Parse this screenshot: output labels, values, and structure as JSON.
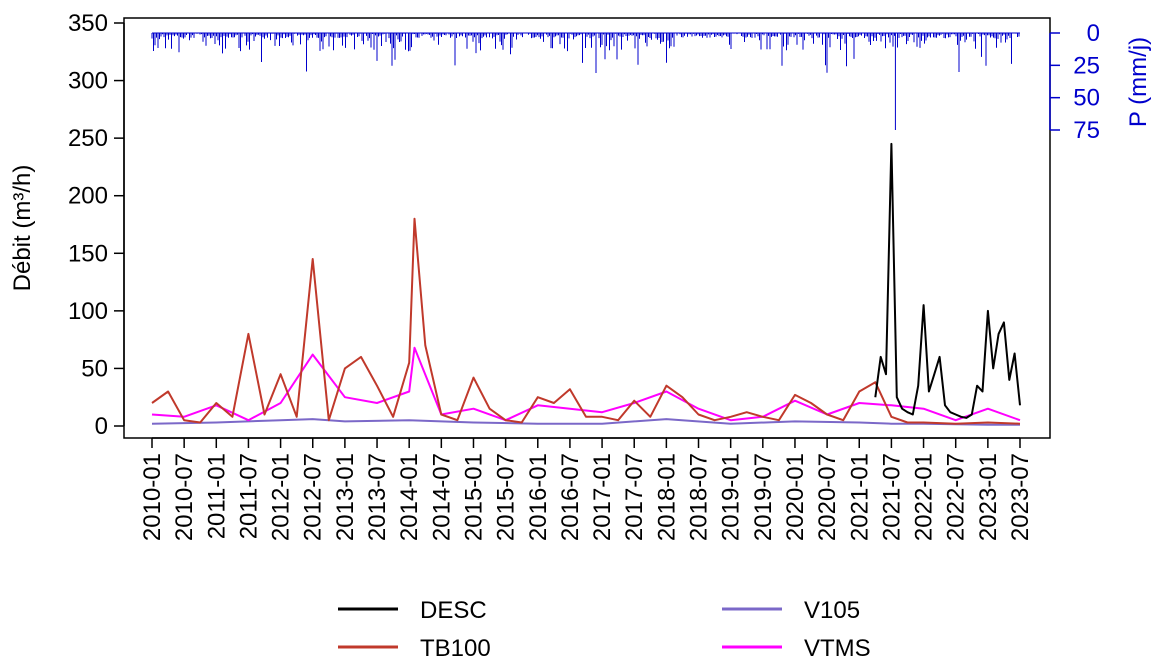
{
  "chart_data": {
    "type": "line",
    "ylabel": "Débit (m³/h)",
    "y2label": "P (mm/j)",
    "ylim": [
      0,
      350
    ],
    "yticks": [
      0,
      50,
      100,
      150,
      200,
      250,
      300,
      350
    ],
    "y2lim_inverted": [
      0,
      75
    ],
    "y2ticks": [
      0,
      25,
      50,
      75
    ],
    "xlim": [
      "2010-01",
      "2023-07"
    ],
    "xticks": [
      "2010-01",
      "2010-07",
      "2011-01",
      "2011-07",
      "2012-01",
      "2012-07",
      "2013-01",
      "2013-07",
      "2014-01",
      "2014-07",
      "2015-01",
      "2015-07",
      "2016-01",
      "2016-07",
      "2017-01",
      "2017-07",
      "2018-01",
      "2018-07",
      "2019-01",
      "2019-07",
      "2020-01",
      "2020-07",
      "2021-01",
      "2021-07",
      "2022-01",
      "2022-07",
      "2023-01",
      "2023-07"
    ],
    "grid": false,
    "legend_position": "bottom",
    "colors": {
      "DESC": "#000000",
      "TB100": "#c0392b",
      "V105": "#7b68c8",
      "VTMS": "#ff00ff",
      "precip": "#0000cc"
    },
    "series": [
      {
        "name": "DESC",
        "x": [
          "2021-04",
          "2021-05",
          "2021-06",
          "2021-07",
          "2021-08",
          "2021-09",
          "2021-10",
          "2021-11",
          "2021-12",
          "2022-01",
          "2022-02",
          "2022-03",
          "2022-04",
          "2022-05",
          "2022-06",
          "2022-07",
          "2022-08",
          "2022-09",
          "2022-10",
          "2022-11",
          "2022-12",
          "2023-01",
          "2023-02",
          "2023-03",
          "2023-04",
          "2023-05",
          "2023-06",
          "2023-07"
        ],
        "y": [
          25,
          60,
          45,
          245,
          25,
          15,
          12,
          10,
          35,
          105,
          30,
          45,
          60,
          18,
          12,
          10,
          8,
          7,
          10,
          35,
          30,
          100,
          50,
          80,
          90,
          40,
          63,
          18
        ]
      },
      {
        "name": "TB100",
        "x": [
          "2010-01",
          "2010-04",
          "2010-07",
          "2010-10",
          "2011-01",
          "2011-04",
          "2011-07",
          "2011-10",
          "2012-01",
          "2012-04",
          "2012-07",
          "2012-10",
          "2013-01",
          "2013-04",
          "2013-07",
          "2013-10",
          "2014-01",
          "2014-02",
          "2014-04",
          "2014-07",
          "2014-10",
          "2015-01",
          "2015-04",
          "2015-07",
          "2015-10",
          "2016-01",
          "2016-04",
          "2016-07",
          "2016-10",
          "2017-01",
          "2017-04",
          "2017-07",
          "2017-10",
          "2018-01",
          "2018-04",
          "2018-07",
          "2018-10",
          "2019-01",
          "2019-04",
          "2019-07",
          "2019-10",
          "2020-01",
          "2020-04",
          "2020-07",
          "2020-10",
          "2021-01",
          "2021-04",
          "2021-07",
          "2021-10",
          "2022-01",
          "2022-07",
          "2023-01",
          "2023-07"
        ],
        "y": [
          20,
          30,
          5,
          3,
          20,
          8,
          80,
          10,
          45,
          8,
          145,
          5,
          50,
          60,
          35,
          8,
          55,
          180,
          70,
          10,
          5,
          42,
          15,
          5,
          3,
          25,
          20,
          32,
          8,
          8,
          5,
          22,
          8,
          35,
          25,
          10,
          5,
          8,
          12,
          8,
          5,
          27,
          20,
          10,
          5,
          30,
          38,
          8,
          3,
          3,
          2,
          3,
          2
        ]
      },
      {
        "name": "V105",
        "x": [
          "2010-01",
          "2011-01",
          "2012-01",
          "2012-07",
          "2013-01",
          "2014-01",
          "2015-01",
          "2016-01",
          "2017-01",
          "2018-01",
          "2019-01",
          "2020-01",
          "2021-01",
          "2021-07",
          "2022-01",
          "2023-01",
          "2023-07"
        ],
        "y": [
          2,
          3,
          5,
          6,
          4,
          5,
          3,
          2,
          2,
          6,
          2,
          4,
          3,
          2,
          2,
          1,
          1
        ]
      },
      {
        "name": "VTMS",
        "x": [
          "2010-01",
          "2010-07",
          "2011-01",
          "2011-07",
          "2012-01",
          "2012-07",
          "2013-01",
          "2013-07",
          "2014-01",
          "2014-02",
          "2014-07",
          "2015-01",
          "2015-07",
          "2016-01",
          "2016-07",
          "2017-01",
          "2017-07",
          "2018-01",
          "2018-07",
          "2019-01",
          "2019-07",
          "2020-01",
          "2020-07",
          "2021-01",
          "2021-07",
          "2022-01",
          "2022-07",
          "2023-01",
          "2023-07"
        ],
        "y": [
          10,
          8,
          18,
          5,
          20,
          62,
          25,
          20,
          30,
          68,
          10,
          15,
          5,
          18,
          15,
          12,
          20,
          30,
          15,
          5,
          8,
          22,
          10,
          20,
          18,
          15,
          5,
          15,
          5
        ]
      }
    ],
    "precipitation": {
      "name": "P",
      "unit": "mm/j",
      "peak": 75,
      "peak_date": "2021-07"
    }
  }
}
